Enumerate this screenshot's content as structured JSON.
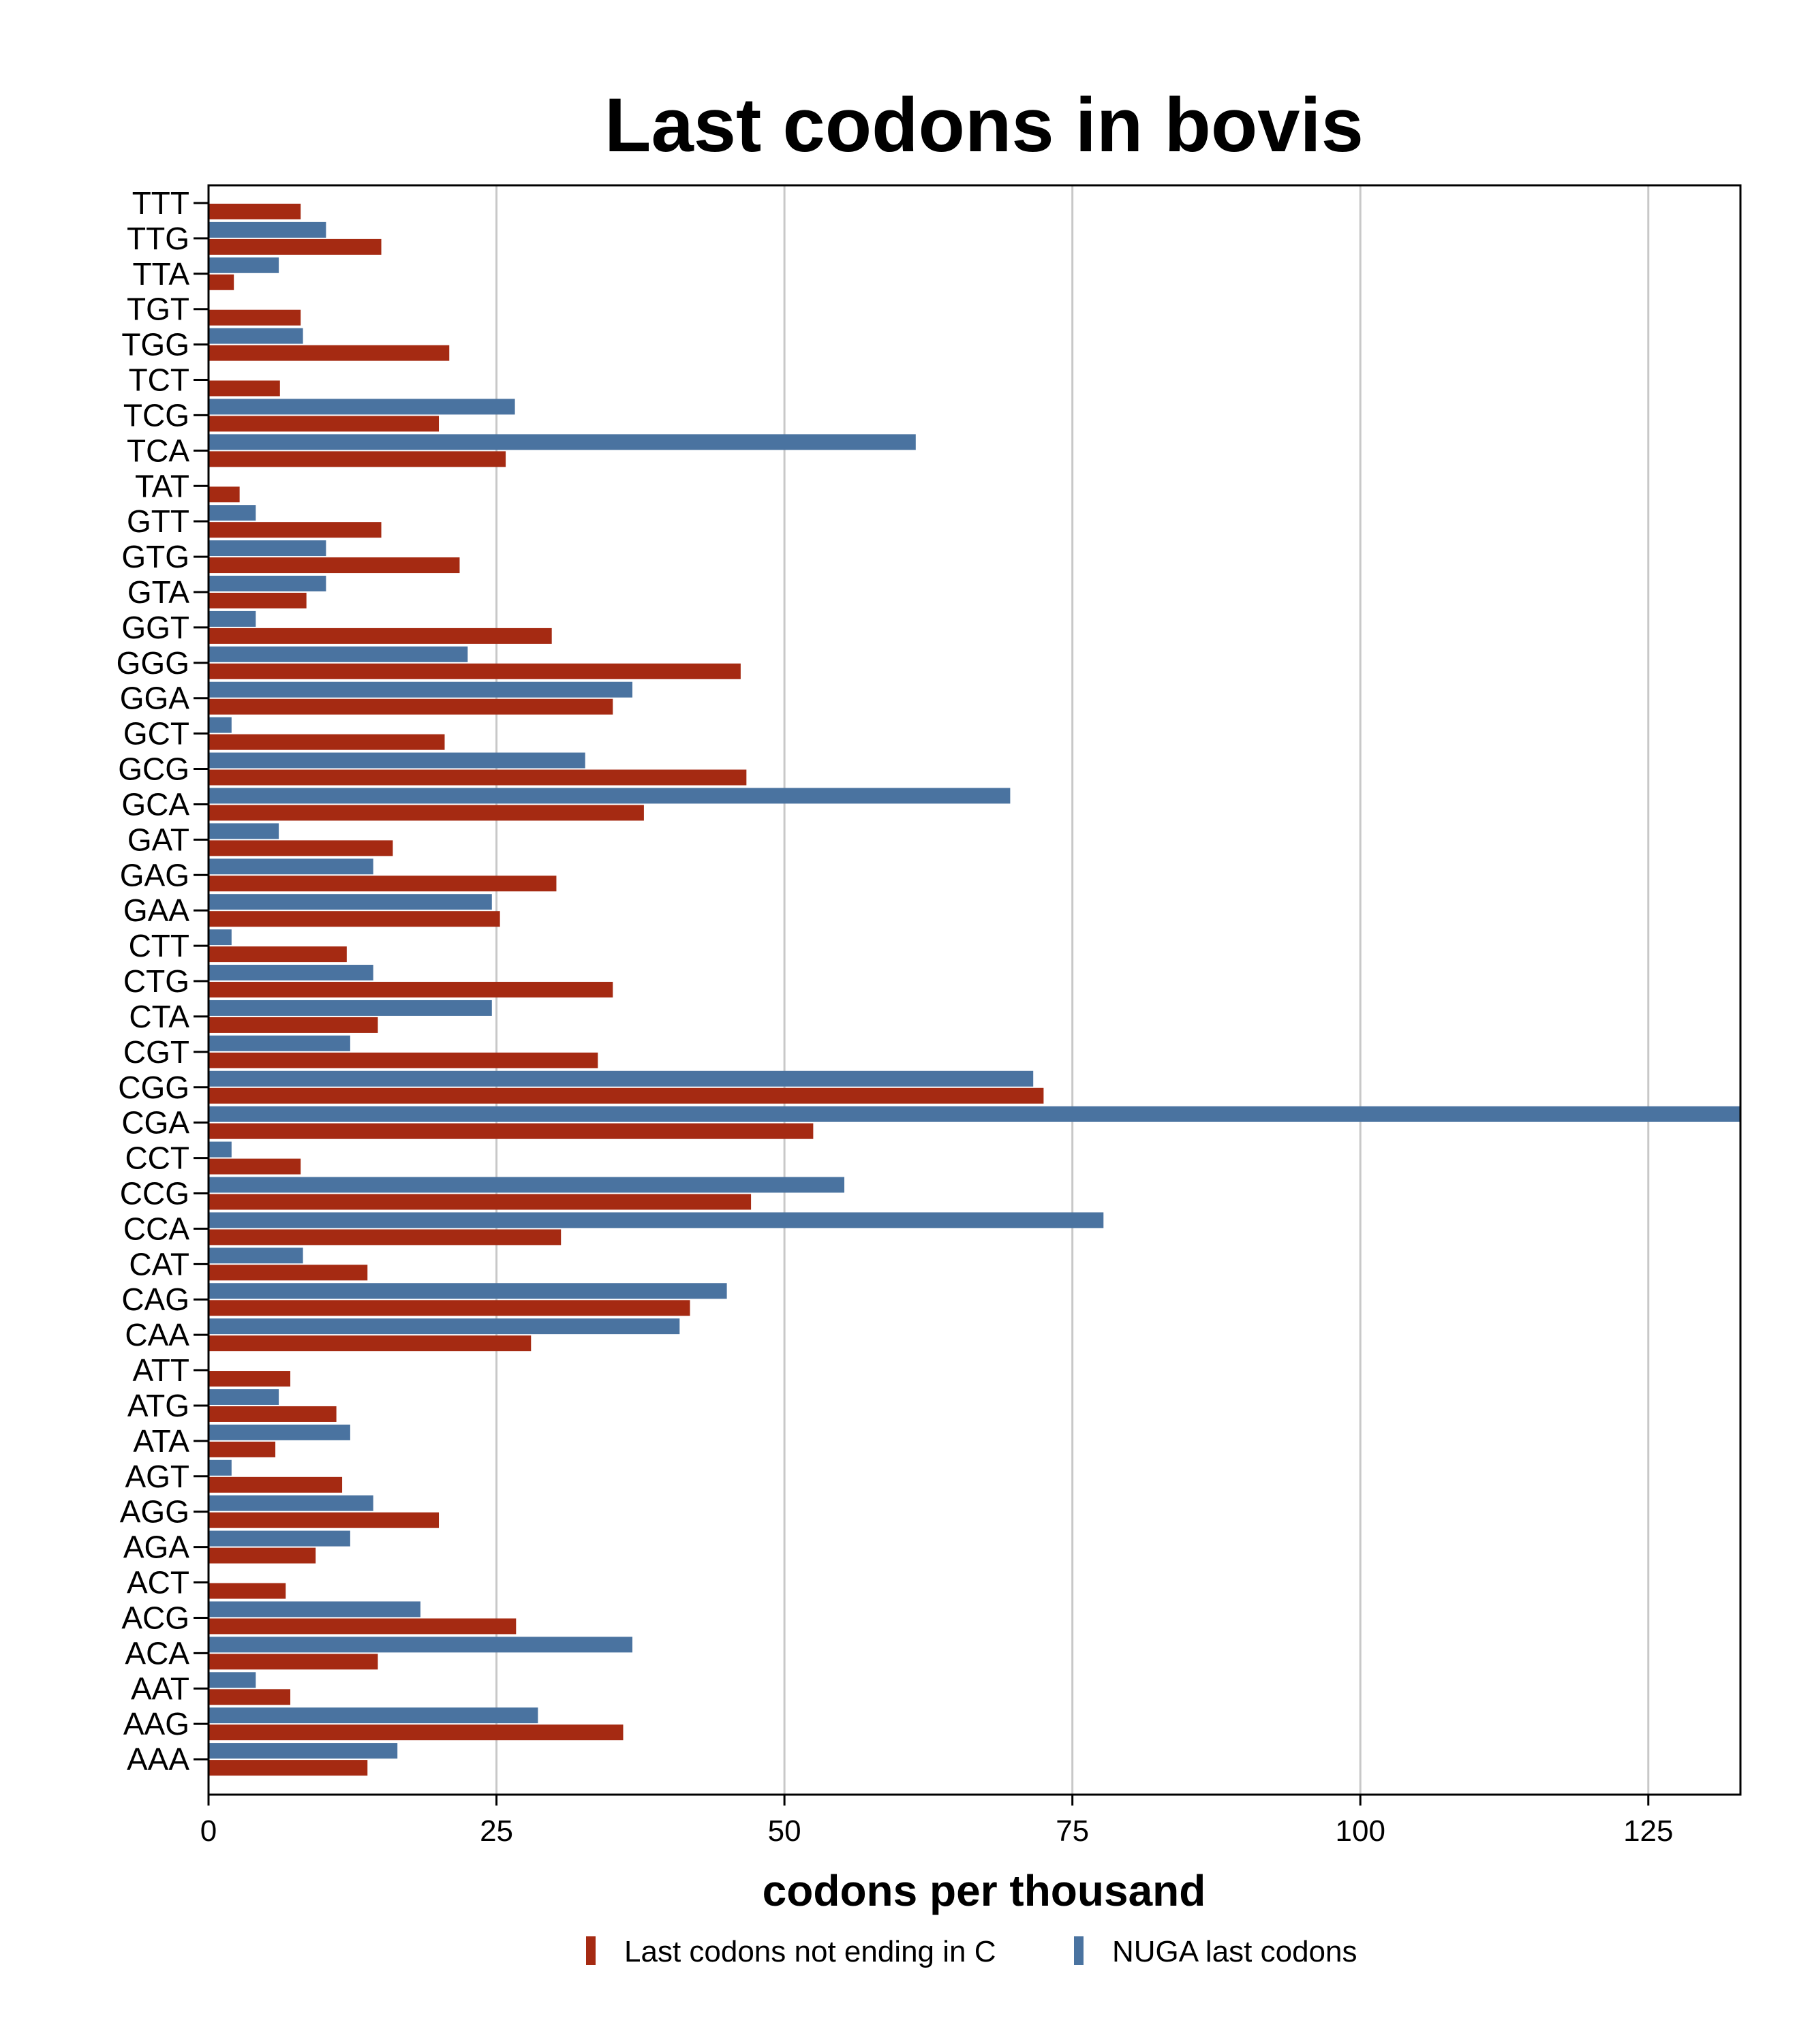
{
  "chart_data": {
    "type": "bar",
    "orientation": "horizontal",
    "title": "Last codons in bovis",
    "xlabel": "codons per thousand",
    "ylabel": "",
    "xlim": [
      0,
      133
    ],
    "x_ticks": [
      0,
      25,
      50,
      75,
      100,
      125
    ],
    "grid": "vertical",
    "legend_position": "bottom",
    "categories": [
      "TTT",
      "TTG",
      "TTA",
      "TGT",
      "TGG",
      "TCT",
      "TCG",
      "TCA",
      "TAT",
      "GTT",
      "GTG",
      "GTA",
      "GGT",
      "GGG",
      "GGA",
      "GCT",
      "GCG",
      "GCA",
      "GAT",
      "GAG",
      "GAA",
      "CTT",
      "CTG",
      "CTA",
      "CGT",
      "CGG",
      "CGA",
      "CCT",
      "CCG",
      "CCA",
      "CAT",
      "CAG",
      "CAA",
      "ATT",
      "ATG",
      "ATA",
      "AGT",
      "AGG",
      "AGA",
      "ACT",
      "ACG",
      "ACA",
      "AAT",
      "AAG",
      "AAA"
    ],
    "series": [
      {
        "name": "Last codons not ending in C",
        "color": "#a52a12",
        "values": [
          8,
          15,
          2.2,
          8,
          20.9,
          6.2,
          20,
          25.8,
          2.7,
          15,
          21.8,
          8.5,
          29.8,
          46.2,
          35.1,
          20.5,
          46.7,
          37.8,
          16,
          30.2,
          25.3,
          12,
          35.1,
          14.7,
          33.8,
          72.5,
          52.5,
          8,
          47.1,
          30.6,
          13.8,
          41.8,
          28,
          7.1,
          11.1,
          5.8,
          11.6,
          20,
          9.3,
          6.7,
          26.7,
          14.7,
          7.1,
          36,
          13.8
        ]
      },
      {
        "name": "NUGA last codons",
        "color": "#4a73a0",
        "values": [
          0,
          10.2,
          6.1,
          0,
          8.2,
          0,
          26.6,
          61.4,
          0,
          4.1,
          10.2,
          10.2,
          4.1,
          22.5,
          36.8,
          2,
          32.7,
          69.6,
          6.1,
          14.3,
          24.6,
          2,
          14.3,
          24.6,
          12.3,
          71.6,
          133,
          2,
          55.2,
          77.7,
          8.2,
          45,
          40.9,
          0,
          6.1,
          12.3,
          2,
          14.3,
          12.3,
          0,
          18.4,
          36.8,
          4.1,
          28.6,
          16.4
        ]
      }
    ]
  }
}
